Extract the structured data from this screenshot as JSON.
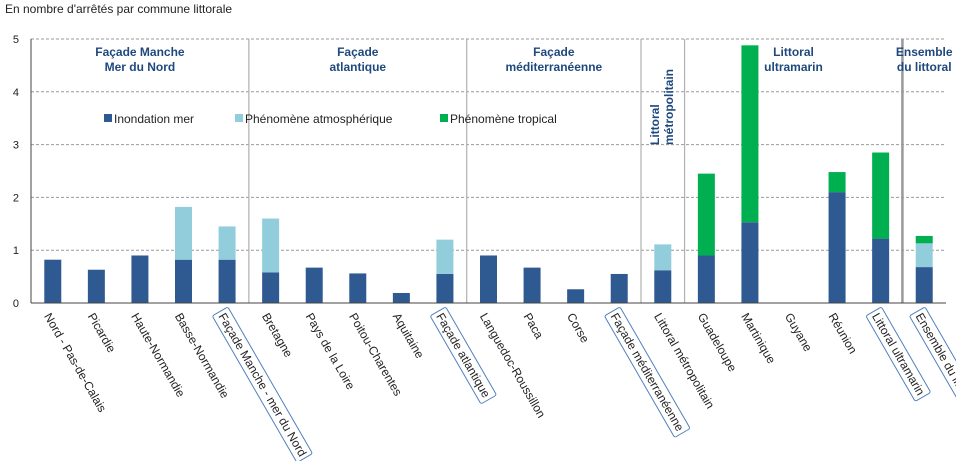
{
  "chart_data": {
    "type": "bar",
    "stacked": true,
    "ylabel": "En nombre d'arrêtés par commune littorale",
    "ylim": [
      0,
      5
    ],
    "yticks": [
      0,
      1,
      2,
      3,
      4,
      5
    ],
    "grid": true,
    "categories": [
      "Nord - Pas-de-Calais",
      "Picardie",
      "Haute-Normandie",
      "Basse-Normandie",
      "Façade Manche - mer du Nord",
      "Bretagne",
      "Pays de la Loire",
      "Poitou-Charentes",
      "Aquitaine",
      "Façade atlantique",
      "Languedoc-Roussillon",
      "Paca",
      "Corse",
      "Façade méditerranéenne",
      "Littoral métropolitain",
      "Guadeloupe",
      "Martinique",
      "Guyane",
      "Réunion",
      "Littoral ultramarin",
      "Ensemble du littoral"
    ],
    "boxed_categories": [
      "Façade Manche - mer du Nord",
      "Façade atlantique",
      "Façade méditerranéenne",
      "Littoral ultramarin",
      "Ensemble du littoral"
    ],
    "series": [
      {
        "name": "Inondation mer",
        "color": "#2E5A91",
        "values": [
          0.82,
          0.63,
          0.9,
          0.82,
          0.82,
          0.58,
          0.67,
          0.56,
          0.19,
          0.55,
          0.9,
          0.67,
          0.26,
          0.55,
          0.62,
          0.9,
          1.53,
          0,
          2.1,
          1.22,
          0.68
        ]
      },
      {
        "name": "Phénomène atmosphérique",
        "color": "#92CDDC",
        "values": [
          0,
          0,
          0,
          1.0,
          0.63,
          1.02,
          0,
          0,
          0,
          0.65,
          0,
          0,
          0,
          0,
          0.49,
          0,
          0,
          0,
          0,
          0,
          0.45
        ]
      },
      {
        "name": "Phénomène tropical",
        "color": "#00B050",
        "values": [
          0,
          0,
          0,
          0,
          0,
          0,
          0,
          0,
          0,
          0,
          0,
          0,
          0,
          0,
          0,
          1.55,
          3.35,
          0,
          0.38,
          1.63,
          0.14
        ]
      }
    ],
    "groups": [
      {
        "label_lines": [
          "Façade Manche",
          "Mer du Nord"
        ],
        "start": 0,
        "end": 4,
        "vertical": false
      },
      {
        "label_lines": [
          "Façade",
          "atlantique"
        ],
        "start": 5,
        "end": 9,
        "vertical": false
      },
      {
        "label_lines": [
          "Façade",
          "méditerranéenne"
        ],
        "start": 10,
        "end": 13,
        "vertical": false
      },
      {
        "label_lines": [
          "Littoral",
          "métropolitain"
        ],
        "start": 14,
        "end": 14,
        "vertical": true
      },
      {
        "label_lines": [
          "Littoral",
          "ultramarin"
        ],
        "start": 15,
        "end": 19,
        "vertical": false
      },
      {
        "label_lines": [
          "Ensemble",
          "du littoral"
        ],
        "start": 20,
        "end": 20,
        "vertical": false
      }
    ],
    "legend_position": "inside-top"
  }
}
